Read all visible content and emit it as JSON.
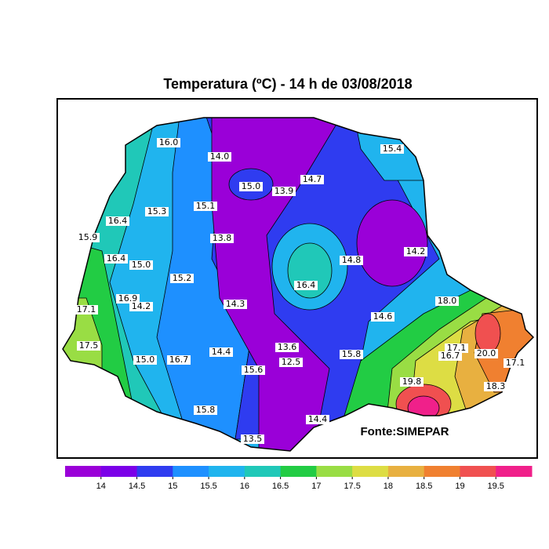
{
  "map": {
    "title": "Temperatura (ºC) - 14 h de 03/08/2018",
    "source": "Fonte:SIMEPAR",
    "contour_labels": [
      "16.0",
      "14.0",
      "15.4",
      "15.0",
      "13.9",
      "14.7",
      "15.3",
      "15.1",
      "16.4",
      "15.9",
      "13.8",
      "14.8",
      "14.2",
      "16.4",
      "15.0",
      "15.2",
      "16.4",
      "16.9",
      "14.2",
      "14.3",
      "18.0",
      "17.1",
      "14.6",
      "17.5",
      "13.6",
      "14.4",
      "15.8",
      "17.1",
      "16.7",
      "15.0",
      "16.7",
      "12.5",
      "20.0",
      "17.1",
      "15.6",
      "19.8",
      "18.3",
      "15.8",
      "14.4",
      "13.5"
    ],
    "colorbar": {
      "ticks": [
        14,
        14.5,
        15,
        15.5,
        16,
        16.5,
        17,
        17.5,
        18,
        18.5,
        19,
        19.5
      ],
      "colors": [
        "#9a00d8",
        "#7b00e8",
        "#2f3cf0",
        "#1e90ff",
        "#20b4ee",
        "#20c8b8",
        "#22cc44",
        "#99dd44",
        "#dddd44",
        "#e8b040",
        "#f08030",
        "#f05050",
        "#f0208a"
      ]
    }
  }
}
